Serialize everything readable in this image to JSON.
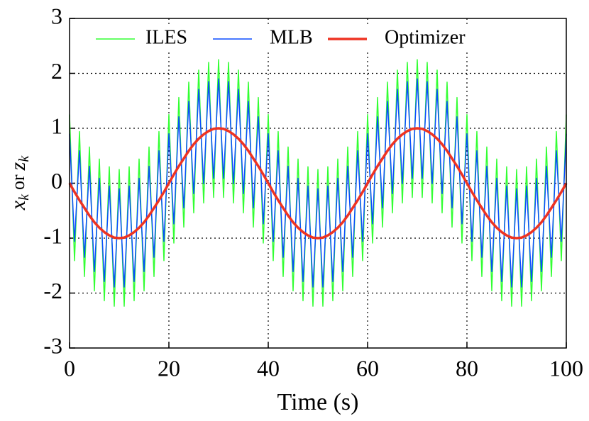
{
  "chart_data": {
    "type": "line",
    "xlabel": "Time (s)",
    "ylabel": [
      "x",
      "k",
      "or",
      "z",
      "k"
    ],
    "xlim": [
      0,
      100
    ],
    "xticks": [
      0,
      20,
      40,
      60,
      80,
      100
    ],
    "ylim": [
      -3,
      3
    ],
    "yticks": [
      -3,
      -2,
      -1,
      0,
      1,
      2,
      3
    ],
    "grid": true,
    "legend": "top",
    "x": [
      0,
      1,
      2,
      3,
      4,
      5,
      6,
      7,
      8,
      9,
      10,
      11,
      12,
      13,
      14,
      15,
      16,
      17,
      18,
      19,
      20,
      21,
      22,
      23,
      24,
      25,
      26,
      27,
      28,
      29,
      30,
      31,
      32,
      33,
      34,
      35,
      36,
      37,
      38,
      39,
      40,
      41,
      42,
      43,
      44,
      45,
      46,
      47,
      48,
      49,
      50,
      51,
      52,
      53,
      54,
      55,
      56,
      57,
      58,
      59,
      60,
      61,
      62,
      63,
      64,
      65,
      66,
      67,
      68,
      69,
      70,
      71,
      72,
      73,
      74,
      75,
      76,
      77,
      78,
      79,
      80,
      81,
      82,
      83,
      84,
      85,
      86,
      87,
      88,
      89,
      90,
      91,
      92,
      93,
      94,
      95,
      96,
      97,
      98,
      99,
      100
    ],
    "series": [
      {
        "name": "ILES",
        "color": "#33ff33",
        "width": 1.5,
        "values": [
          1.25,
          -1.41,
          0.94,
          -1.7,
          0.66,
          -1.96,
          0.44,
          -2.14,
          0.3,
          -2.24,
          0.25,
          -2.24,
          0.3,
          -2.14,
          0.44,
          -1.96,
          0.66,
          -1.7,
          0.94,
          -1.41,
          1.25,
          -1.09,
          1.56,
          -0.8,
          1.84,
          -0.54,
          2.06,
          -0.36,
          2.2,
          -0.26,
          2.25,
          -0.26,
          2.2,
          -0.36,
          2.06,
          -0.54,
          1.84,
          -0.8,
          1.56,
          -1.09,
          1.25,
          -1.41,
          0.94,
          -1.7,
          0.66,
          -1.96,
          0.44,
          -2.14,
          0.3,
          -2.24,
          0.25,
          -2.24,
          0.3,
          -2.14,
          0.44,
          -1.96,
          0.66,
          -1.7,
          0.94,
          -1.41,
          1.25,
          -1.09,
          1.56,
          -0.8,
          1.84,
          -0.54,
          2.06,
          -0.36,
          2.2,
          -0.26,
          2.25,
          -0.26,
          2.2,
          -0.36,
          2.06,
          -0.54,
          1.84,
          -0.8,
          1.56,
          -1.09,
          1.25,
          -1.41,
          0.94,
          -1.7,
          0.66,
          -1.96,
          0.44,
          -2.14,
          0.3,
          -2.24,
          0.25,
          -2.24,
          0.3,
          -2.14,
          0.44,
          -1.96,
          0.66,
          -1.7,
          0.94,
          -1.41,
          1.25
        ]
      },
      {
        "name": "MLB",
        "color": "#0a4cff",
        "width": 1.5,
        "values": [
          0.9,
          -1.06,
          0.59,
          -1.35,
          0.31,
          -1.61,
          0.09,
          -1.79,
          -0.05,
          -1.89,
          -0.1,
          -1.89,
          -0.05,
          -1.79,
          0.09,
          -1.61,
          0.31,
          -1.35,
          0.59,
          -1.06,
          0.9,
          -0.74,
          1.21,
          -0.45,
          1.49,
          -0.19,
          1.71,
          -0.01,
          1.85,
          0.09,
          1.9,
          0.09,
          1.85,
          -0.01,
          1.71,
          -0.19,
          1.49,
          -0.45,
          1.21,
          -0.74,
          0.9,
          -1.06,
          0.59,
          -1.35,
          0.31,
          -1.61,
          0.09,
          -1.79,
          -0.05,
          -1.89,
          -0.1,
          -1.89,
          -0.05,
          -1.79,
          0.09,
          -1.61,
          0.31,
          -1.35,
          0.59,
          -1.06,
          0.9,
          -0.74,
          1.21,
          -0.45,
          1.49,
          -0.19,
          1.71,
          -0.01,
          1.85,
          0.09,
          1.9,
          0.09,
          1.85,
          -0.01,
          1.71,
          -0.19,
          1.49,
          -0.45,
          1.21,
          -0.74,
          0.9,
          -1.06,
          0.59,
          -1.35,
          0.31,
          -1.61,
          0.09,
          -1.79,
          -0.05,
          -1.89,
          -0.1,
          -1.89,
          -0.05,
          -1.79,
          0.09,
          -1.61,
          0.31,
          -1.35,
          0.59,
          -1.06,
          0.9
        ]
      },
      {
        "name": "Optimizer",
        "color": "#ee3322",
        "width": 3.5,
        "values": [
          0,
          -0.16,
          -0.31,
          -0.45,
          -0.59,
          -0.71,
          -0.81,
          -0.89,
          -0.95,
          -0.99,
          -1,
          -0.99,
          -0.95,
          -0.89,
          -0.81,
          -0.71,
          -0.59,
          -0.45,
          -0.31,
          -0.16,
          0,
          0.16,
          0.31,
          0.45,
          0.59,
          0.71,
          0.81,
          0.89,
          0.95,
          0.99,
          1,
          0.99,
          0.95,
          0.89,
          0.81,
          0.71,
          0.59,
          0.45,
          0.31,
          0.16,
          0,
          -0.16,
          -0.31,
          -0.45,
          -0.59,
          -0.71,
          -0.81,
          -0.89,
          -0.95,
          -0.99,
          -1,
          -0.99,
          -0.95,
          -0.89,
          -0.81,
          -0.71,
          -0.59,
          -0.45,
          -0.31,
          -0.16,
          0,
          0.16,
          0.31,
          0.45,
          0.59,
          0.71,
          0.81,
          0.89,
          0.95,
          0.99,
          1,
          0.99,
          0.95,
          0.89,
          0.81,
          0.71,
          0.59,
          0.45,
          0.31,
          0.16,
          0,
          -0.16,
          -0.31,
          -0.45,
          -0.59,
          -0.71,
          -0.81,
          -0.89,
          -0.95,
          -0.99,
          -1,
          -0.99,
          -0.95,
          -0.89,
          -0.81,
          -0.71,
          -0.59,
          -0.45,
          -0.31,
          -0.16,
          0
        ]
      }
    ]
  }
}
